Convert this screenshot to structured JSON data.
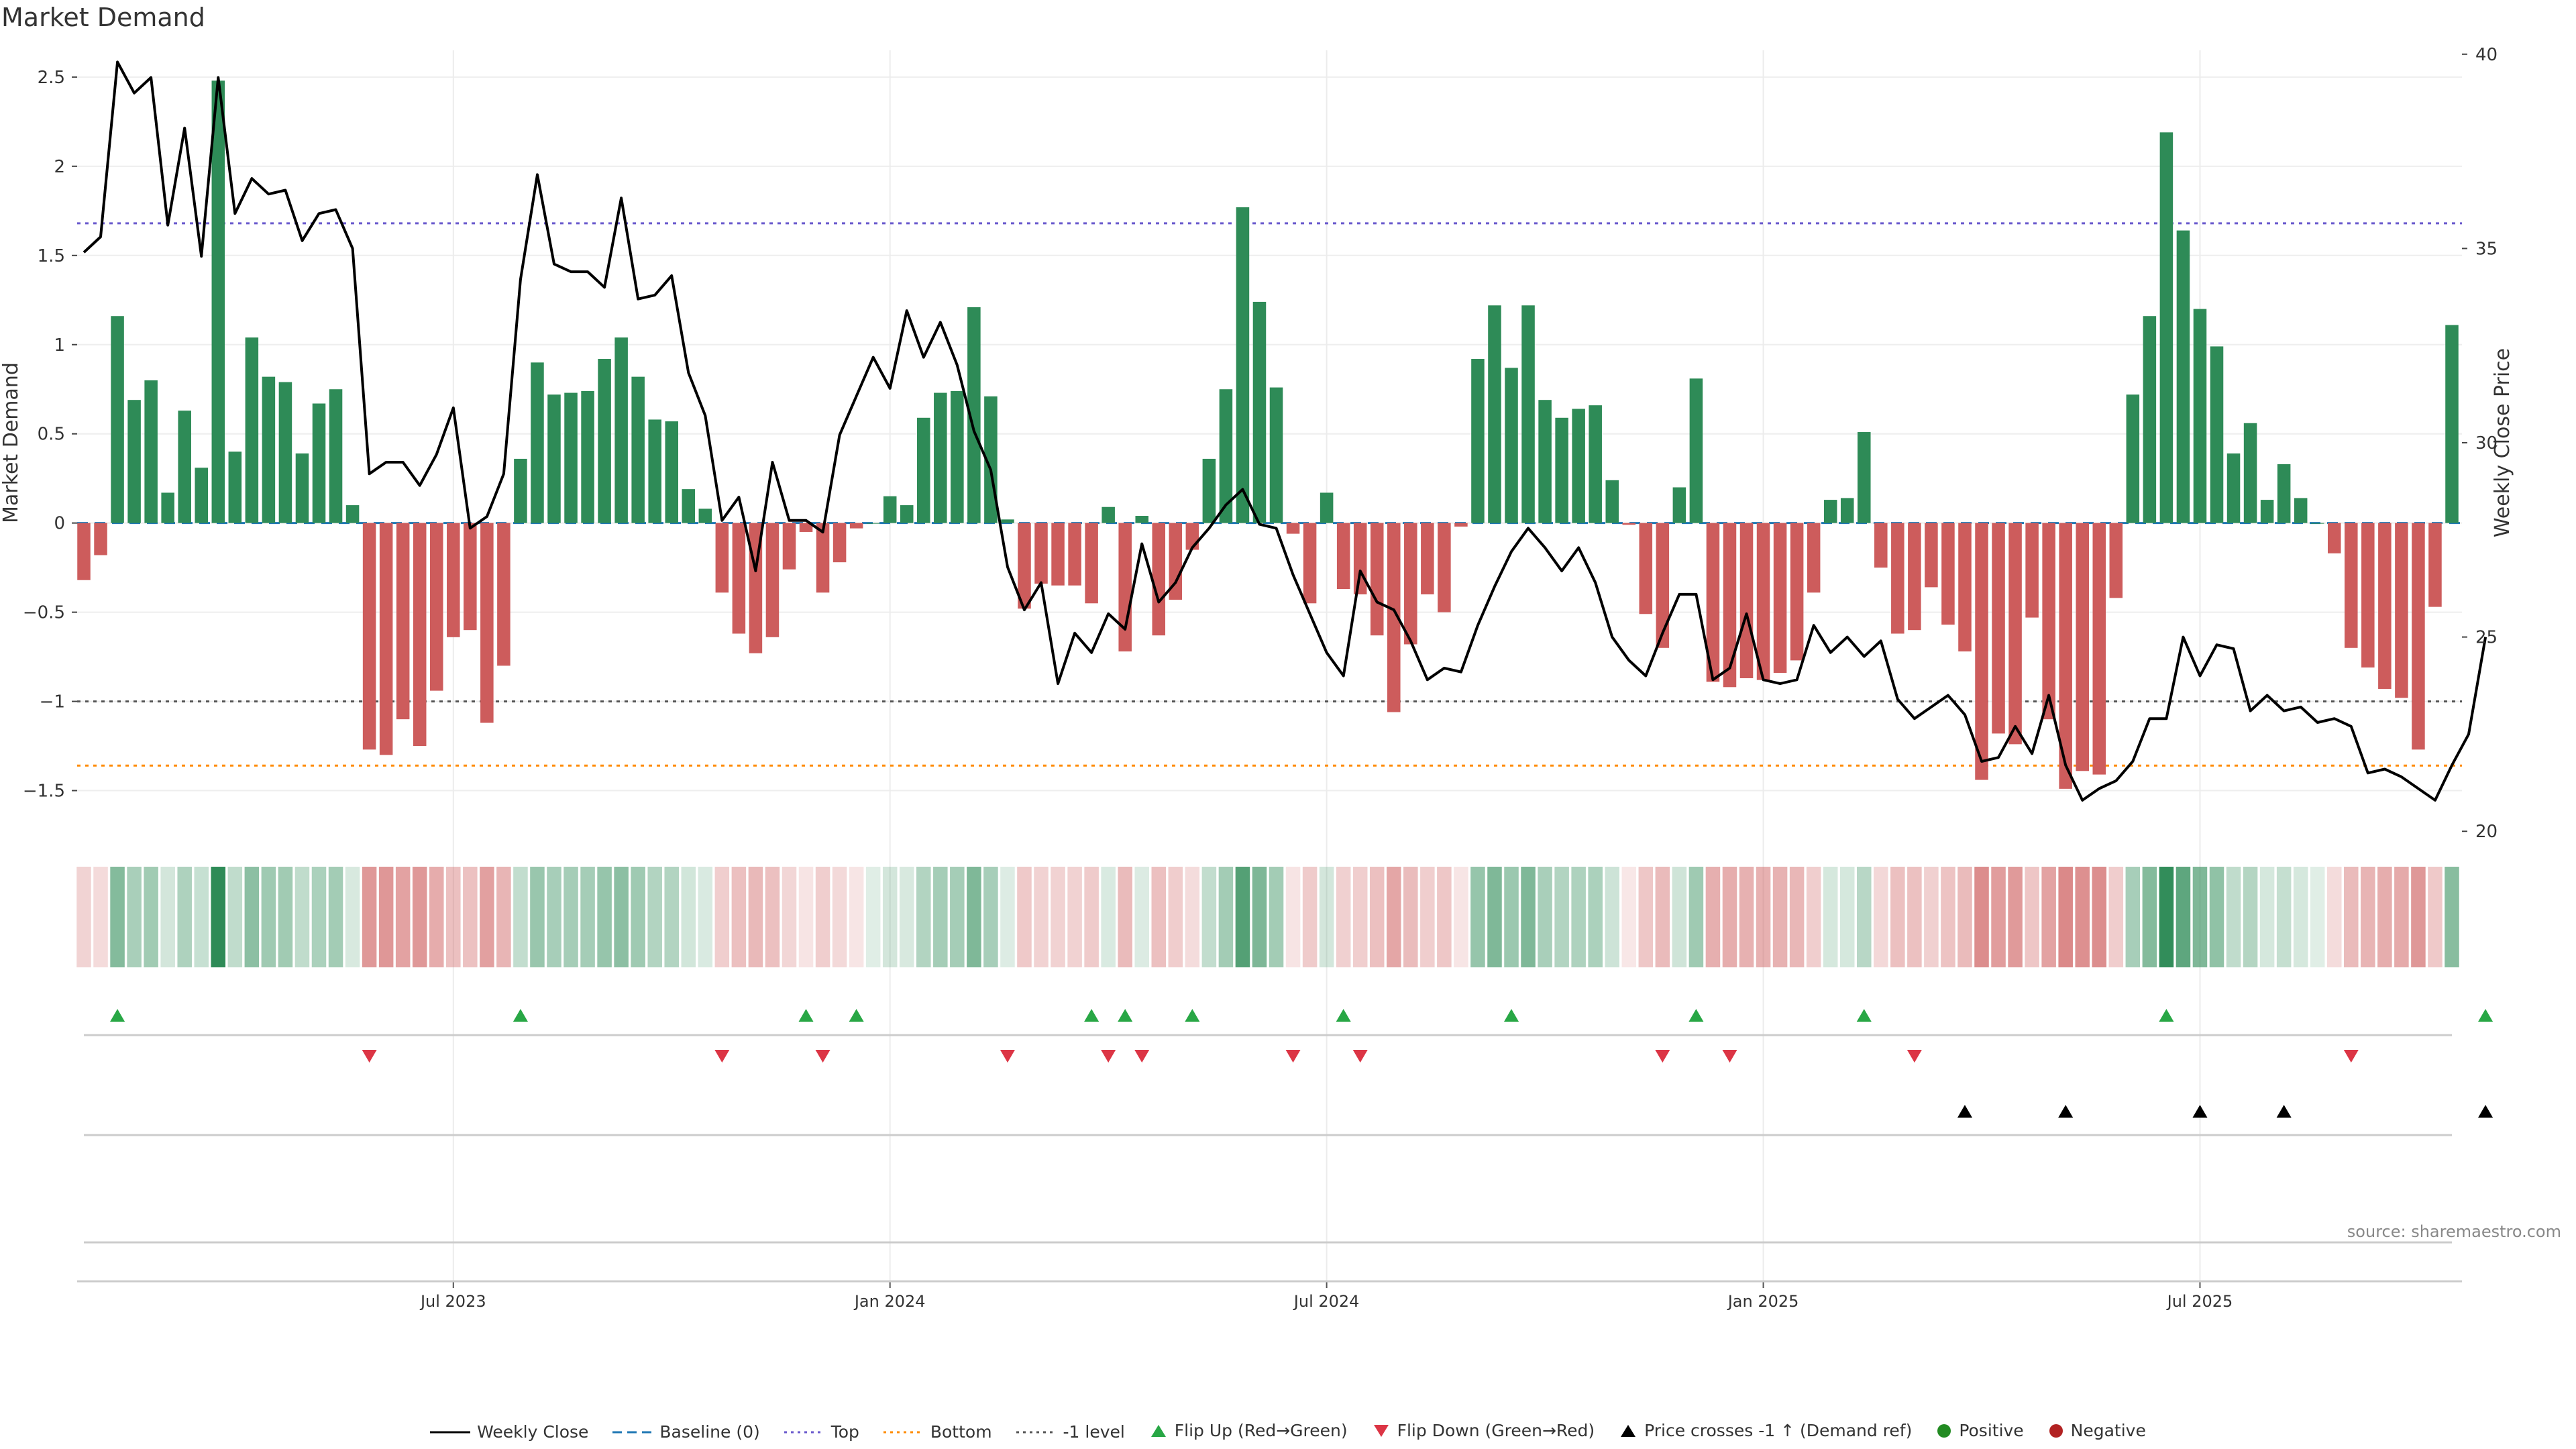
{
  "header": {
    "title": "Market Demand"
  },
  "source": "source: sharemaestro.com",
  "colors": {
    "positive": "#2e8b57",
    "negative": "#cd5c5c",
    "price_line": "#000000",
    "baseline": "#1f77b4",
    "top": "#6a5acd",
    "bottom": "#ff8c00",
    "minus_one": "#555555",
    "flip_up": "#28a745",
    "flip_down": "#dc3545",
    "price_cross": "#000000"
  },
  "legend": [
    {
      "key": "weekly-close",
      "label": "Weekly Close"
    },
    {
      "key": "baseline",
      "label": "Baseline (0)"
    },
    {
      "key": "top",
      "label": "Top"
    },
    {
      "key": "bottom",
      "label": "Bottom"
    },
    {
      "key": "minus-one",
      "label": "-1 level"
    },
    {
      "key": "flip-up",
      "label": "Flip Up (Red→Green)"
    },
    {
      "key": "flip-down",
      "label": "Flip Down (Green→Red)"
    },
    {
      "key": "price-cross",
      "label": "Price crosses -1 ↑ (Demand ref)"
    },
    {
      "key": "positive",
      "label": "Positive"
    },
    {
      "key": "negative",
      "label": "Negative"
    }
  ],
  "chart_data": {
    "type": "bar",
    "title": "Market Demand",
    "xlabel": "",
    "ylabel": "Market Demand",
    "y2label": "Weekly Close Price",
    "ylim": [
      -1.75,
      2.65
    ],
    "y2lim": [
      19.9,
      40.1
    ],
    "y_ticks": [
      "2.5",
      "2",
      "1.5",
      "1",
      "0.5",
      "0",
      "−0.5",
      "−1",
      "−1.5"
    ],
    "y_tick_values": [
      2.5,
      2,
      1.5,
      1,
      0.5,
      0,
      -0.5,
      -1,
      -1.5
    ],
    "y2_ticks": [
      "40",
      "35",
      "30",
      "25",
      "20"
    ],
    "y2_tick_values": [
      40,
      35,
      30,
      25,
      20
    ],
    "x_ticks": [
      {
        "label": "Jul 2023",
        "week": 22
      },
      {
        "label": "Jan 2024",
        "week": 48
      },
      {
        "label": "Jul 2024",
        "week": 74
      },
      {
        "label": "Jan 2025",
        "week": 100
      },
      {
        "label": "Jul 2025",
        "week": 126
      }
    ],
    "reference_lines": {
      "top": 1.68,
      "bottom": -1.36,
      "minus_one": -1.0,
      "baseline": 0
    },
    "demand": [
      -0.32,
      -0.18,
      1.16,
      0.69,
      0.8,
      0.17,
      0.63,
      0.31,
      2.48,
      0.4,
      1.04,
      0.82,
      0.79,
      0.39,
      0.67,
      0.75,
      0.1,
      -1.27,
      -1.3,
      -1.1,
      -1.25,
      -0.94,
      -0.64,
      -0.6,
      -1.12,
      -0.8,
      0.36,
      0.9,
      0.72,
      0.73,
      0.74,
      0.92,
      1.04,
      0.82,
      0.58,
      0.57,
      0.19,
      0.08,
      -0.39,
      -0.62,
      -0.73,
      -0.64,
      -0.26,
      -0.05,
      -0.39,
      -0.22,
      -0.03,
      0.0,
      0.15,
      0.1,
      0.59,
      0.73,
      0.74,
      1.21,
      0.71,
      0.02,
      -0.48,
      -0.34,
      -0.35,
      -0.35,
      -0.45,
      0.09,
      -0.72,
      0.04,
      -0.63,
      -0.43,
      -0.15,
      0.36,
      0.75,
      1.77,
      1.24,
      0.76,
      -0.06,
      -0.45,
      0.17,
      -0.37,
      -0.4,
      -0.63,
      -1.06,
      -0.68,
      -0.4,
      -0.5,
      -0.02,
      0.92,
      1.22,
      0.87,
      1.22,
      0.69,
      0.59,
      0.64,
      0.66,
      0.24,
      -0.01,
      -0.51,
      -0.7,
      0.2,
      0.81,
      -0.89,
      -0.92,
      -0.87,
      -0.88,
      -0.84,
      -0.77,
      -0.39,
      0.13,
      0.14,
      0.51,
      -0.25,
      -0.62,
      -0.6,
      -0.36,
      -0.57,
      -0.72,
      -1.44,
      -1.18,
      -1.24,
      -0.53,
      -1.1,
      -1.49,
      -1.39,
      -1.41,
      -0.42,
      0.72,
      1.16,
      2.19,
      1.64,
      1.2,
      0.99,
      0.39,
      0.56,
      0.13,
      0.33,
      0.14,
      0.0,
      -0.17,
      -0.7,
      -0.81,
      -0.93,
      -0.98,
      -1.27,
      -0.47,
      1.11
    ],
    "price": [
      34.9,
      35.3,
      39.8,
      39.0,
      39.4,
      35.6,
      38.1,
      34.8,
      39.4,
      35.9,
      36.8,
      36.4,
      36.5,
      35.2,
      35.9,
      36.0,
      35.0,
      29.2,
      29.5,
      29.5,
      28.9,
      29.7,
      30.9,
      27.8,
      28.1,
      29.2,
      34.2,
      36.9,
      34.6,
      34.4,
      34.4,
      34.0,
      36.3,
      33.7,
      33.8,
      34.3,
      31.8,
      30.7,
      28.0,
      28.6,
      26.7,
      29.5,
      28.0,
      28.0,
      27.7,
      30.2,
      31.2,
      32.2,
      31.4,
      33.4,
      32.2,
      33.1,
      32.0,
      30.3,
      29.3,
      26.8,
      25.7,
      26.4,
      23.8,
      25.1,
      24.6,
      25.6,
      25.2,
      27.4,
      25.9,
      26.4,
      27.3,
      27.8,
      28.4,
      28.8,
      27.9,
      27.8,
      26.6,
      25.6,
      24.6,
      24.0,
      26.7,
      25.9,
      25.7,
      24.9,
      23.9,
      24.2,
      24.1,
      25.3,
      26.3,
      27.2,
      27.8,
      27.3,
      26.7,
      27.3,
      26.4,
      25.0,
      24.4,
      24.0,
      25.1,
      26.1,
      26.1,
      23.9,
      24.2,
      25.6,
      23.9,
      23.8,
      23.9,
      25.3,
      24.6,
      25.0,
      24.5,
      24.9,
      23.4,
      22.9,
      23.2,
      23.5,
      23.0,
      21.8,
      21.9,
      22.7,
      22.0,
      23.5,
      21.7,
      20.8,
      21.1,
      21.3,
      21.8,
      22.9,
      22.9,
      25.0,
      24.0,
      24.8,
      24.7,
      23.1,
      23.5,
      23.1,
      23.2,
      22.8,
      22.9,
      22.7,
      21.5,
      21.6,
      21.4,
      21.1,
      20.8,
      21.7,
      22.5,
      25.0
    ],
    "flip_up_weeks": [
      2,
      26,
      43,
      46,
      60,
      62,
      66,
      75,
      85,
      96,
      106,
      124,
      143
    ],
    "flip_down_weeks": [
      17,
      38,
      44,
      55,
      61,
      63,
      72,
      76,
      94,
      98,
      109,
      135
    ],
    "price_cross_weeks": [
      112,
      118,
      126,
      131,
      143
    ]
  }
}
